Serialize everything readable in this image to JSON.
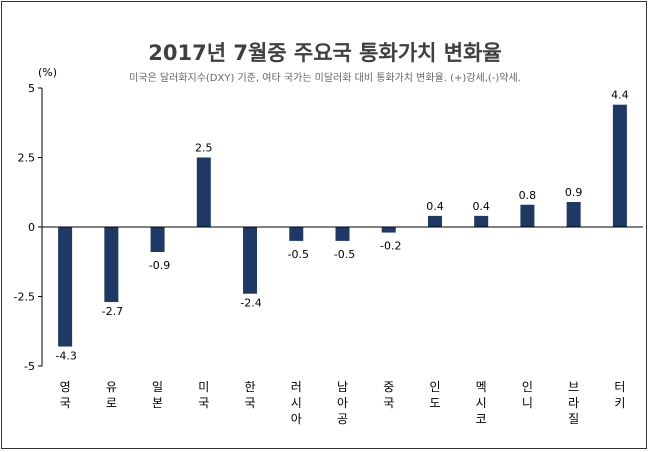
{
  "chart_data": {
    "type": "bar",
    "title": "2017년 7월중 주요국 통화가치 변화율",
    "subtitle": "미국은 달러화지수(DXY) 기준, 여타 국가는 미달러화 대비 통화가치 변화율. (+)강세,(-)약세.",
    "yunit": "(%)",
    "categories": [
      "영국",
      "유로",
      "일본",
      "미국",
      "한국",
      "러시아",
      "남아공",
      "중국",
      "인도",
      "멕시코",
      "인니",
      "브라질",
      "터키"
    ],
    "values": [
      -4.3,
      -2.7,
      -0.9,
      2.5,
      -2.4,
      -0.5,
      -0.5,
      -0.2,
      0.4,
      0.4,
      0.8,
      0.9,
      4.4
    ],
    "value_labels": [
      "-4.3",
      "-2.7",
      "-0.9",
      "2.5",
      "-2.4",
      "-0.5",
      "-0.5",
      "-0.2",
      "0.4",
      "0.4",
      "0.8",
      "0.9",
      "4.4"
    ],
    "ylim": [
      -5,
      5
    ],
    "yticks": [
      5,
      2.5,
      0,
      -2.5,
      -5
    ],
    "ytick_labels": [
      "5",
      "2.5",
      "0",
      "-2.5",
      "-5"
    ],
    "bar_color": "#1f3864",
    "grid": false,
    "legend": "none"
  }
}
